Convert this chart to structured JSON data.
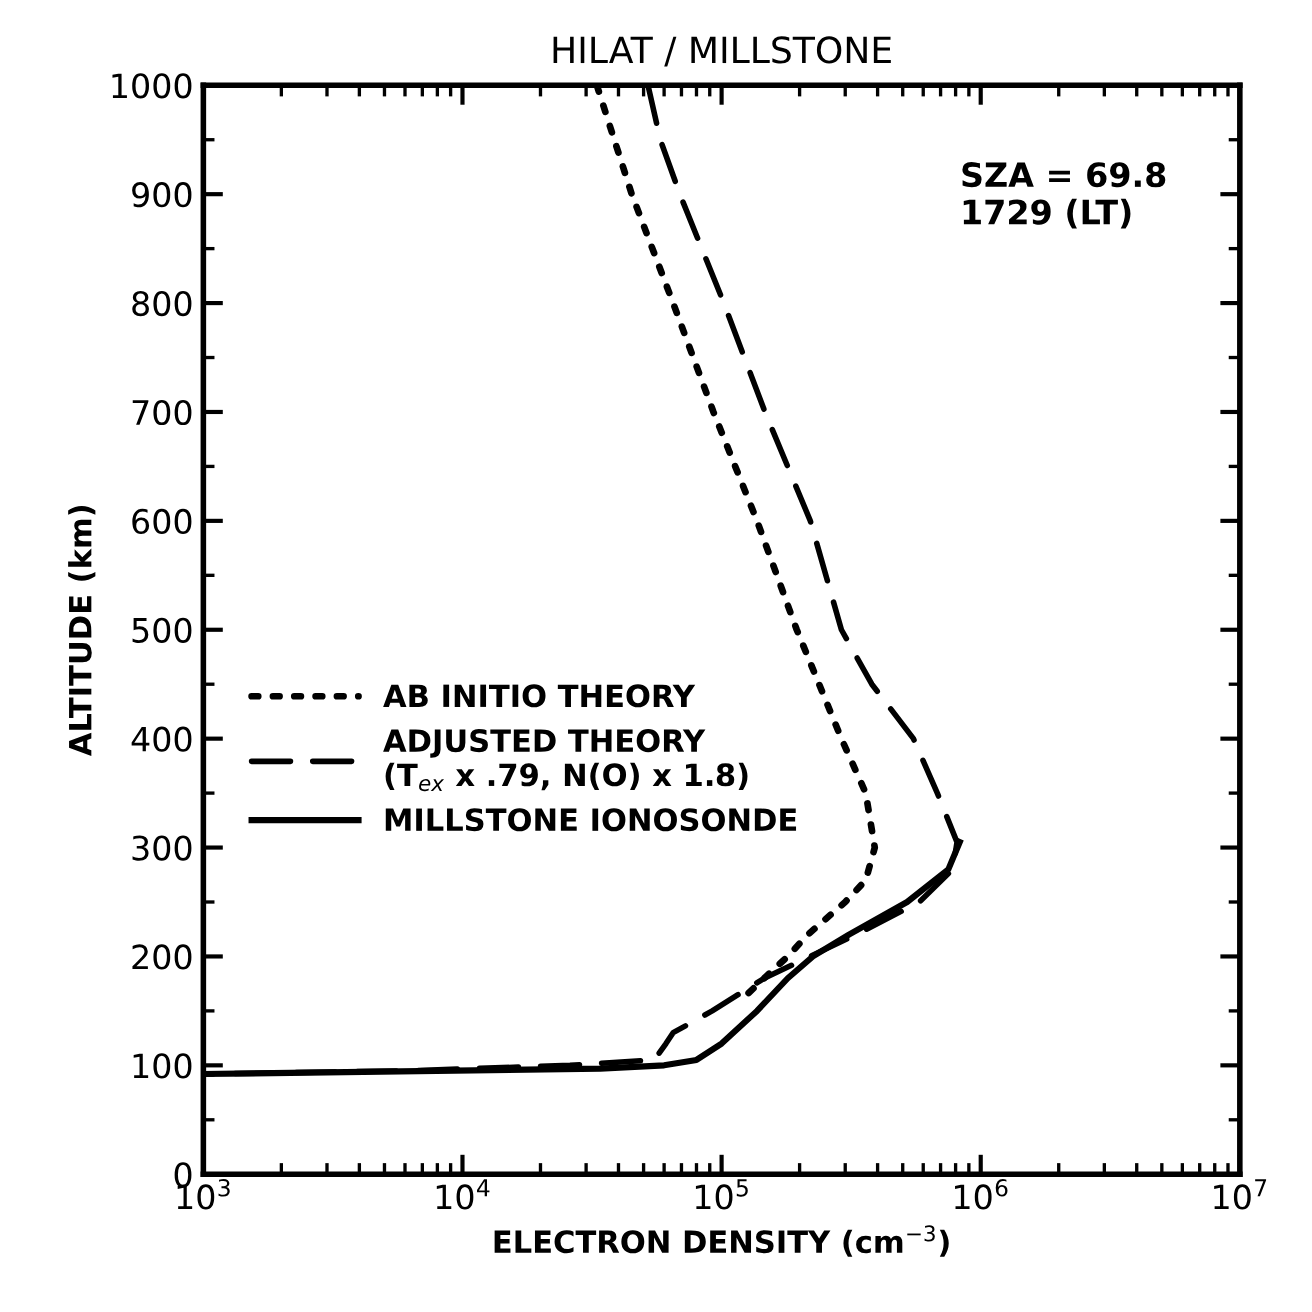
{
  "chart_data": {
    "type": "line",
    "title": "HILAT / MILLSTONE",
    "xlabel": "ELECTRON DENSITY (cm$^{−3}$)",
    "ylabel": "ALTITUDE (km)",
    "log": "x",
    "xlim": [
      1000,
      10000000
    ],
    "ylim": [
      0,
      1000
    ],
    "xticks": [
      {
        "value": 1000,
        "label": "10$^{3}$"
      },
      {
        "value": 10000,
        "label": "10$^{4}$"
      },
      {
        "value": 100000,
        "label": "10$^{5}$"
      },
      {
        "value": 1000000,
        "label": "10$^{6}$"
      },
      {
        "value": 10000000,
        "label": "10$^{7}$"
      }
    ],
    "yticks": [
      0,
      100,
      200,
      300,
      400,
      500,
      600,
      700,
      800,
      900,
      1000
    ],
    "grid": false,
    "legend": "left",
    "annotations": [
      "SZA = 69.8\n1729 (LT)"
    ],
    "series": [
      {
        "name": "AB INITIO THEORY",
        "color": "#000000",
        "line_style": "dotted",
        "x": [
          33000,
          45000,
          65000,
          93000,
          137000,
          195000,
          290000,
          360000,
          390000,
          360000,
          300000,
          215000,
          180000,
          146000,
          119000
        ],
        "values": [
          1000,
          900,
          800,
          700,
          600,
          500,
          400,
          350,
          300,
          270,
          250,
          220,
          200,
          180,
          160
        ]
      },
      {
        "name": "ADJUSTED THEORY\n(T$_{ex}$ x .79, N(O) x 1.8)",
        "color": "#000000",
        "line_style": "dashed",
        "x": [
          52000,
          58000,
          69000,
          102000,
          147000,
          220000,
          290000,
          380000,
          550000,
          680000,
          810000,
          780000,
          580000,
          330000,
          220000,
          146000,
          92000,
          65000,
          61000,
          55000,
          26000,
          6100,
          1000
        ],
        "values": [
          1000,
          950,
          900,
          800,
          700,
          600,
          500,
          450,
          400,
          350,
          305,
          280,
          250,
          220,
          200,
          180,
          150,
          130,
          120,
          105,
          100,
          95,
          92
        ]
      },
      {
        "name": "MILLSTONE IONOSONDE",
        "color": "#000000",
        "line_style": "solid",
        "x": [
          1000,
          34000,
          60000,
          80000,
          100000,
          137000,
          180000,
          225000,
          310000,
          520000,
          750000,
          830000
        ],
        "values": [
          92,
          97,
          100,
          105,
          120,
          150,
          180,
          200,
          220,
          250,
          280,
          305
        ]
      }
    ]
  }
}
